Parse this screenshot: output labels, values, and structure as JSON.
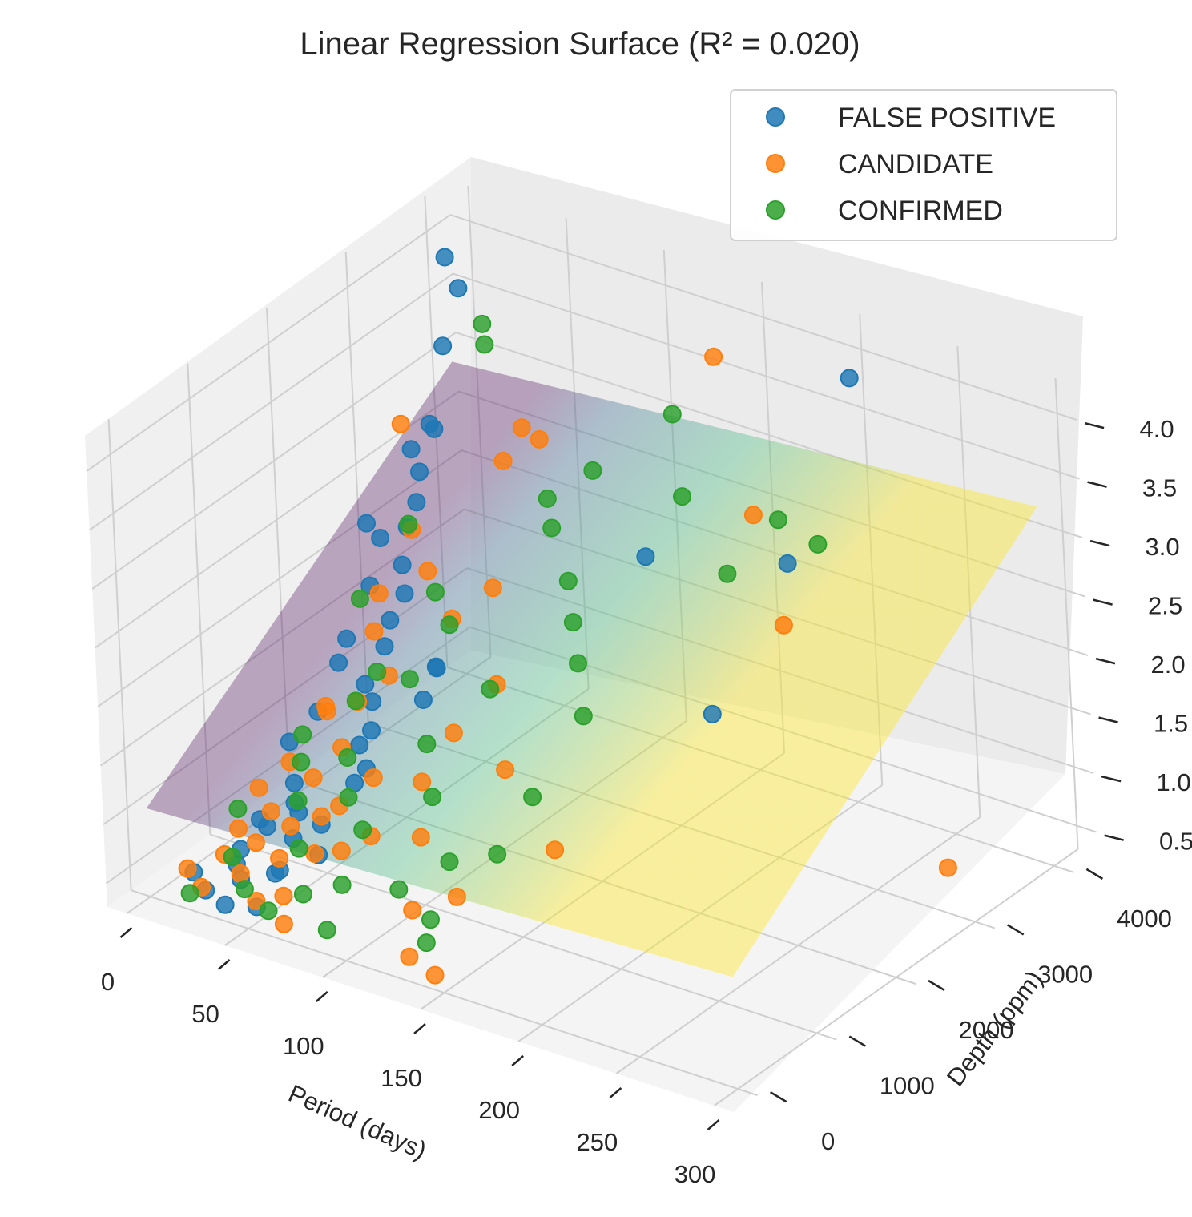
{
  "chart_data": {
    "type": "scatter",
    "title": "Linear Regression Surface (R² = 0.020)",
    "xlabel": "Period (days)",
    "ylabel": "Depth (ppm)",
    "zlabel": "",
    "xlim": [
      -10,
      310
    ],
    "ylim": [
      -300,
      4300
    ],
    "zlim": [
      0.3,
      4.3
    ],
    "x_ticks": [
      "0",
      "50",
      "100",
      "150",
      "200",
      "250",
      "300"
    ],
    "y_ticks": [
      "0",
      "1000",
      "2000",
      "3000",
      "4000"
    ],
    "z_ticks": [
      "0.5",
      "1.0",
      "1.5",
      "2.0",
      "2.5",
      "3.0",
      "3.5",
      "4.0"
    ],
    "grid": true,
    "legend_position": "top-right",
    "regression_surface": {
      "colormap": "viridis",
      "corners_z": {
        "x0_y0": 1.05,
        "x300_y0": 1.25,
        "x0_y4000": 2.95,
        "x300_y4000": 3.35
      }
    },
    "series": [
      {
        "name": "FALSE POSITIVE",
        "color": "#1f77b4",
        "points": [
          [
            3,
            3900,
            3.9
          ],
          [
            5,
            4000,
            3.6
          ],
          [
            4,
            3800,
            3.2
          ],
          [
            6,
            3600,
            2.6
          ],
          [
            8,
            3500,
            2.7
          ],
          [
            2,
            3400,
            2.5
          ],
          [
            10,
            3300,
            2.4
          ],
          [
            12,
            3200,
            2.2
          ],
          [
            15,
            3000,
            2.1
          ],
          [
            5,
            2900,
            2.0
          ],
          [
            20,
            2800,
            1.9
          ],
          [
            7,
            2700,
            1.7
          ],
          [
            25,
            2500,
            1.6
          ],
          [
            30,
            2300,
            1.5
          ],
          [
            10,
            2200,
            1.3
          ],
          [
            35,
            2000,
            1.2
          ],
          [
            15,
            1800,
            1.1
          ],
          [
            40,
            1700,
            1.0
          ],
          [
            8,
            1600,
            0.9
          ],
          [
            45,
            1500,
            0.8
          ],
          [
            18,
            1400,
            0.7
          ],
          [
            22,
            1300,
            0.6
          ],
          [
            28,
            1200,
            0.6
          ],
          [
            12,
            1100,
            0.5
          ],
          [
            33,
            1000,
            0.5
          ],
          [
            50,
            900,
            0.5
          ],
          [
            14,
            800,
            0.4
          ],
          [
            38,
            700,
            0.4
          ],
          [
            20,
            600,
            0.4
          ],
          [
            26,
            500,
            0.35
          ],
          [
            6,
            400,
            0.35
          ],
          [
            42,
            300,
            0.3
          ],
          [
            16,
            300,
            0.3
          ],
          [
            30,
            200,
            0.3
          ],
          [
            55,
            1500,
            1.3
          ],
          [
            60,
            1300,
            1.1
          ],
          [
            65,
            2100,
            1.6
          ],
          [
            70,
            1800,
            1.5
          ],
          [
            155,
            2600,
            2.8
          ],
          [
            210,
            3900,
            4.0
          ],
          [
            190,
            2500,
            1.7
          ],
          [
            220,
            2800,
            3.0
          ],
          [
            36,
            1900,
            1.4
          ],
          [
            48,
            1000,
            0.7
          ],
          [
            24,
            900,
            0.6
          ],
          [
            19,
            2100,
            1.6
          ],
          [
            11,
            2600,
            2.3
          ],
          [
            29,
            2600,
            1.8
          ],
          [
            44,
            500,
            0.5
          ],
          [
            52,
            2400,
            1.4
          ]
        ]
      },
      {
        "name": "CANDIDATE",
        "color": "#ff7f0e",
        "points": [
          [
            140,
            3900,
            3.8
          ],
          [
            60,
            3400,
            3.0
          ],
          [
            58,
            3200,
            2.8
          ],
          [
            10,
            3100,
            2.9
          ],
          [
            90,
            2900,
            3.3
          ],
          [
            30,
            2700,
            2.3
          ],
          [
            75,
            2600,
            2.1
          ],
          [
            50,
            2400,
            2.2
          ],
          [
            70,
            2200,
            2.0
          ],
          [
            20,
            2500,
            1.8
          ],
          [
            25,
            2300,
            1.6
          ],
          [
            40,
            2100,
            1.4
          ],
          [
            100,
            2000,
            1.7
          ],
          [
            85,
            1800,
            1.3
          ],
          [
            115,
            1700,
            1.2
          ],
          [
            15,
            1900,
            1.1
          ],
          [
            35,
            1600,
            1.0
          ],
          [
            55,
            1500,
            0.9
          ],
          [
            12,
            1500,
            0.8
          ],
          [
            28,
            1400,
            0.8
          ],
          [
            45,
            1300,
            0.7
          ],
          [
            8,
            1200,
            0.7
          ],
          [
            65,
            1200,
            0.6
          ],
          [
            18,
            1100,
            0.6
          ],
          [
            32,
            1000,
            0.6
          ],
          [
            48,
            900,
            0.5
          ],
          [
            22,
            800,
            0.5
          ],
          [
            38,
            700,
            0.5
          ],
          [
            14,
            600,
            0.45
          ],
          [
            26,
            500,
            0.4
          ],
          [
            52,
            400,
            0.4
          ],
          [
            5,
            350,
            0.4
          ],
          [
            42,
            300,
            0.35
          ],
          [
            16,
            250,
            0.35
          ],
          [
            60,
            200,
            0.3
          ],
          [
            120,
            300,
            0.3
          ],
          [
            135,
            250,
            0.25
          ],
          [
            110,
            600,
            0.5
          ],
          [
            125,
            800,
            0.6
          ],
          [
            95,
            1100,
            0.8
          ],
          [
            160,
            1200,
            1.0
          ],
          [
            300,
            2700,
            0.9
          ],
          [
            225,
            2600,
            2.6
          ],
          [
            178,
            3400,
            2.9
          ],
          [
            80,
            1500,
            1.0
          ],
          [
            24,
            1700,
            1.2
          ],
          [
            36,
            1800,
            1.3
          ],
          [
            62,
            900,
            0.6
          ],
          [
            44,
            1100,
            0.7
          ],
          [
            9,
            900,
            0.5
          ]
        ]
      },
      {
        "name": "CONFIRMED",
        "color": "#2ca02c",
        "points": [
          [
            25,
            3800,
            3.5
          ],
          [
            30,
            3700,
            3.4
          ],
          [
            130,
            3600,
            3.4
          ],
          [
            100,
            3300,
            2.9
          ],
          [
            80,
            3200,
            2.6
          ],
          [
            90,
            3000,
            2.5
          ],
          [
            150,
            3200,
            3.0
          ],
          [
            195,
            3300,
            3.0
          ],
          [
            180,
            3000,
            2.6
          ],
          [
            215,
            3300,
            2.9
          ],
          [
            110,
            2700,
            2.3
          ],
          [
            120,
            2500,
            2.1
          ],
          [
            130,
            2300,
            1.9
          ],
          [
            20,
            2900,
            2.2
          ],
          [
            45,
            2600,
            1.9
          ],
          [
            60,
            2400,
            1.8
          ],
          [
            10,
            2500,
            1.7
          ],
          [
            140,
            2100,
            1.6
          ],
          [
            55,
            2000,
            1.5
          ],
          [
            35,
            1800,
            1.3
          ],
          [
            75,
            1700,
            1.2
          ],
          [
            15,
            1600,
            1.0
          ],
          [
            85,
            1500,
            0.9
          ],
          [
            50,
            1300,
            0.8
          ],
          [
            28,
            1200,
            0.7
          ],
          [
            65,
            1100,
            0.7
          ],
          [
            5,
            1000,
            0.6
          ],
          [
            40,
            900,
            0.5
          ],
          [
            95,
            800,
            0.5
          ],
          [
            70,
            700,
            0.45
          ],
          [
            18,
            600,
            0.45
          ],
          [
            120,
            1900,
            0.9
          ],
          [
            130,
            1200,
            0.8
          ],
          [
            105,
            1200,
            0.6
          ],
          [
            115,
            700,
            0.4
          ],
          [
            58,
            500,
            0.4
          ],
          [
            32,
            400,
            0.35
          ],
          [
            48,
            300,
            0.3
          ],
          [
            12,
            200,
            0.3
          ],
          [
            78,
            300,
            0.3
          ],
          [
            125,
            400,
            0.4
          ],
          [
            42,
            1500,
            1.0
          ],
          [
            22,
            1400,
            0.9
          ],
          [
            88,
            2200,
            1.5
          ],
          [
            34,
            2100,
            1.4
          ]
        ]
      }
    ]
  }
}
